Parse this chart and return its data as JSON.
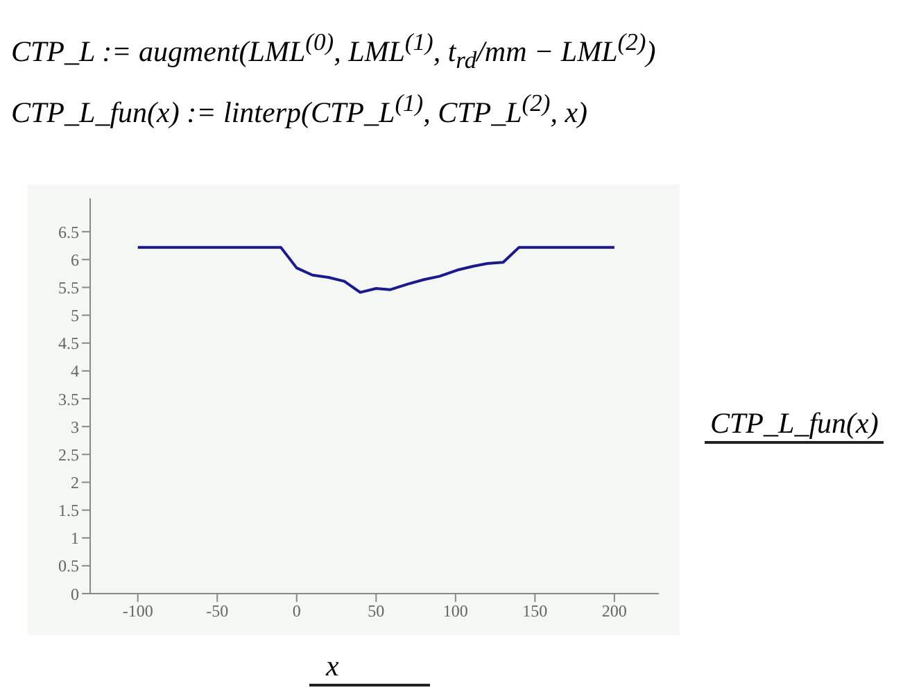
{
  "chart_data": {
    "type": "line",
    "annotations": [
      "CTP_L := augment(LML$^{(0)}$, LML$^{(1)}$, t$_{rd}$/mm − LML$^{(2)}$)",
      "CTP_L_fun(x) := linterp(CTP_L$^{(1)}$, CTP_L$^{(2)}$, x)"
    ],
    "xlabel": "x",
    "ylabel": "CTP_L_fun(x)",
    "x": [
      -100,
      -10,
      0,
      10,
      20,
      30,
      40,
      50,
      59,
      70,
      80,
      90,
      101,
      111,
      120,
      130,
      140,
      200
    ],
    "series": [
      {
        "color": "#1a1a8c",
        "values": [
          6.22,
          6.22,
          5.85,
          5.72,
          5.68,
          5.61,
          5.41,
          5.48,
          5.46,
          5.56,
          5.64,
          5.7,
          5.81,
          5.88,
          5.93,
          5.95,
          6.22,
          6.22
        ]
      }
    ],
    "xlim": [
      -130,
      228
    ],
    "ylim": [
      0,
      7.1
    ],
    "xticks": [
      -100,
      -50,
      0,
      50,
      100,
      150,
      200
    ],
    "yticks": [
      0,
      0.5,
      1,
      1.5,
      2,
      2.5,
      3,
      3.5,
      4,
      4.5,
      5,
      5.5,
      6,
      6.5
    ],
    "grid": false,
    "legend": false,
    "marker": "none",
    "line_style": "solid"
  }
}
